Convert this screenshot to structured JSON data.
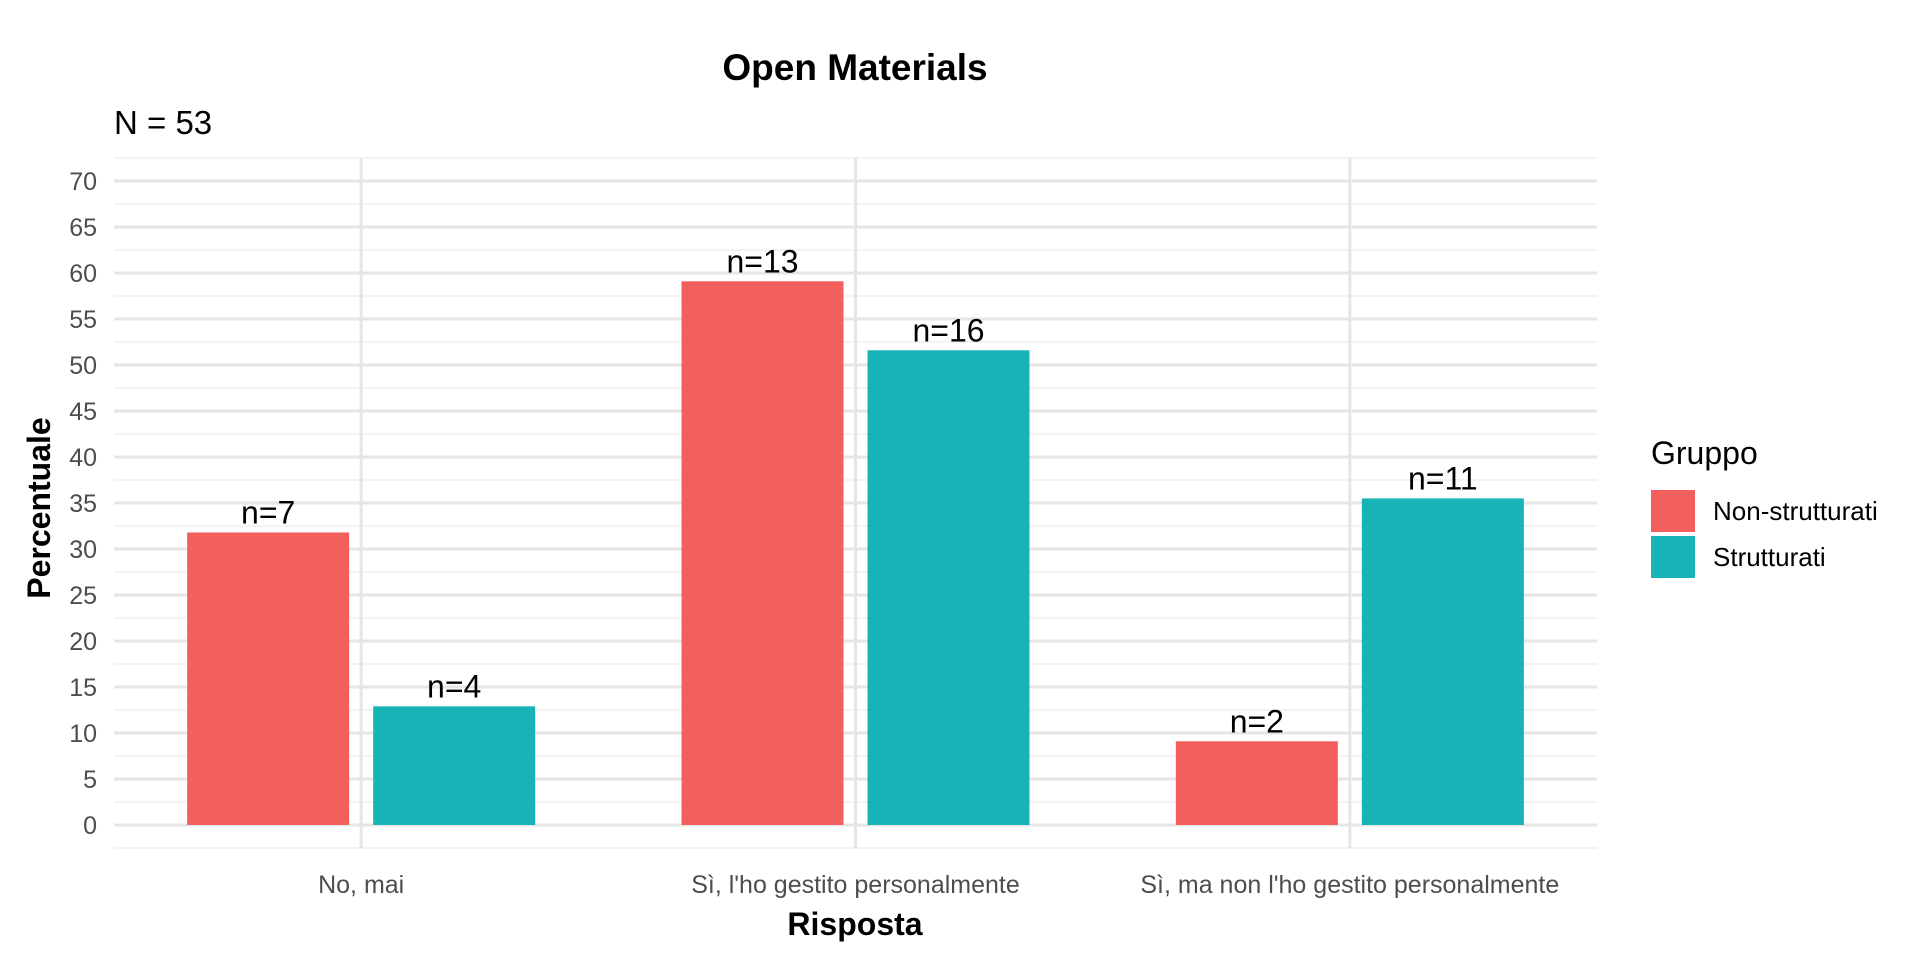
{
  "chart_data": {
    "type": "bar",
    "title": "Open Materials",
    "subtitle": "N = 53",
    "xlabel": "Risposta",
    "ylabel": "Percentuale",
    "categories": [
      "No, mai",
      "Sì, l'ho gestito personalmente",
      "Sì, ma non l'ho gestito personalmente"
    ],
    "series": [
      {
        "name": "Non-strutturati",
        "color": "#F25F5C",
        "values": [
          31.8,
          59.1,
          9.1
        ],
        "labels": [
          "n=7",
          "n=13",
          "n=2"
        ]
      },
      {
        "name": "Strutturati",
        "color": "#18B3B7",
        "values": [
          12.9,
          51.6,
          35.5
        ],
        "labels": [
          "n=4",
          "n=16",
          "n=11"
        ]
      }
    ],
    "ylim": [
      -2.5,
      72.5
    ],
    "yticks": [
      "0",
      "5",
      "10",
      "15",
      "20",
      "25",
      "30",
      "35",
      "40",
      "45",
      "50",
      "55",
      "60",
      "65",
      "70"
    ],
    "grid": true,
    "legend": {
      "title": "Gruppo",
      "position": "right"
    }
  }
}
